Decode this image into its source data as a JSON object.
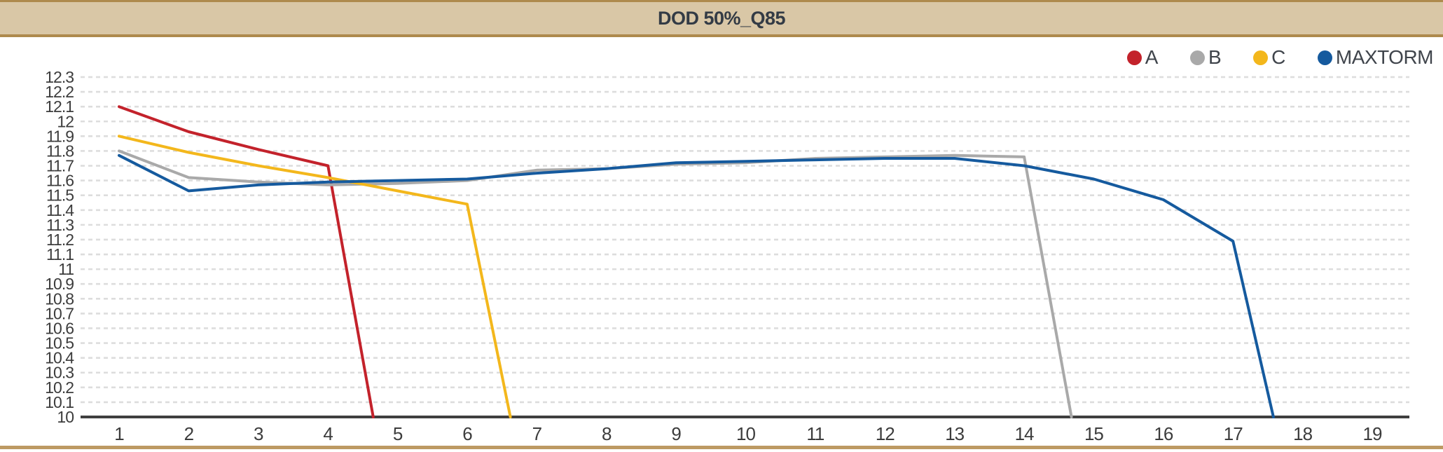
{
  "header": {
    "title": "DOD 50%_Q85"
  },
  "colors": {
    "header_bg": "#d9c7a6",
    "header_border": "#ae8a4d",
    "header_text": "#333b45",
    "bottom_rule": "#bd9a63",
    "axis": "#3f3f3f",
    "gridline": "#dddddd",
    "tick_text": "#3c3c3c",
    "legend_text": "#3f444b",
    "series_a": "#c3222b",
    "series_b": "#a9a9a9",
    "series_c": "#f3b71c",
    "series_maxtorm": "#155a9e",
    "background": "#ffffff"
  },
  "chart_data": {
    "type": "line",
    "title": "DOD 50%_Q85",
    "xlabel": "",
    "ylabel": "",
    "x_ticks": [
      1,
      2,
      3,
      4,
      5,
      6,
      7,
      8,
      9,
      10,
      11,
      12,
      13,
      14,
      15,
      16,
      17,
      18,
      19
    ],
    "y_tick_labels": [
      "12.3",
      "12.2",
      "12.1",
      "12",
      "11.9",
      "11.8",
      "11.7",
      "11.6",
      "11.5",
      "11.4",
      "11.3",
      "11.2",
      "11.1",
      "11",
      "10.9",
      "10.8",
      "10.7",
      "10.6",
      "10.5",
      "10.4",
      "10.3",
      "10.2",
      "10.1",
      "10"
    ],
    "ylim": [
      10,
      12.3
    ],
    "xlim": [
      1,
      19
    ],
    "grid": "horizontal-dashed",
    "legend_position": "top-right",
    "series": [
      {
        "name": "A",
        "color": "#c3222b",
        "points": [
          [
            1,
            12.1
          ],
          [
            2,
            11.93
          ],
          [
            3,
            11.81
          ],
          [
            4,
            11.7
          ],
          [
            4.65,
            10.0
          ]
        ]
      },
      {
        "name": "B",
        "color": "#a9a9a9",
        "points": [
          [
            1,
            11.8
          ],
          [
            2,
            11.62
          ],
          [
            3,
            11.59
          ],
          [
            4,
            11.57
          ],
          [
            5,
            11.58
          ],
          [
            6,
            11.6
          ],
          [
            7,
            11.67
          ],
          [
            8,
            11.68
          ],
          [
            9,
            11.71
          ],
          [
            10,
            11.72
          ],
          [
            11,
            11.75
          ],
          [
            12,
            11.76
          ],
          [
            13,
            11.77
          ],
          [
            14,
            11.76
          ],
          [
            14.68,
            10.0
          ]
        ]
      },
      {
        "name": "C",
        "color": "#f3b71c",
        "points": [
          [
            1,
            11.9
          ],
          [
            2,
            11.79
          ],
          [
            3,
            11.7
          ],
          [
            4,
            11.62
          ],
          [
            5,
            11.53
          ],
          [
            6,
            11.44
          ],
          [
            6.62,
            10.0
          ]
        ]
      },
      {
        "name": "MAXTORM",
        "color": "#155a9e",
        "points": [
          [
            1,
            11.77
          ],
          [
            2,
            11.53
          ],
          [
            3,
            11.57
          ],
          [
            4,
            11.59
          ],
          [
            5,
            11.6
          ],
          [
            6,
            11.61
          ],
          [
            7,
            11.65
          ],
          [
            8,
            11.68
          ],
          [
            9,
            11.72
          ],
          [
            10,
            11.73
          ],
          [
            11,
            11.74
          ],
          [
            12,
            11.75
          ],
          [
            13,
            11.75
          ],
          [
            14,
            11.7
          ],
          [
            15,
            11.61
          ],
          [
            16,
            11.47
          ],
          [
            17,
            11.19
          ],
          [
            17.58,
            10.0
          ]
        ]
      }
    ]
  }
}
